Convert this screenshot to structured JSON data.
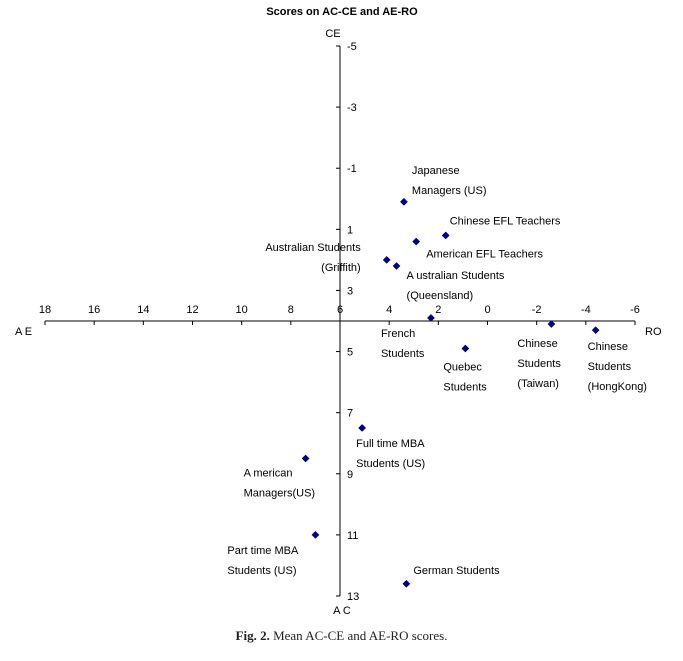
{
  "caption": {
    "label": "Fig. 2.",
    "text": "Mean AC-CE and AE-RO scores."
  },
  "chart_data": {
    "type": "scatter",
    "title": "Scores on AC-CE and AE-RO",
    "axis_labels": {
      "top": "CE",
      "bottom": "A C",
      "left": "A E",
      "right": "RO"
    },
    "x_axis": {
      "ticks": [
        18,
        16,
        14,
        12,
        10,
        8,
        6,
        4,
        2,
        0,
        -2,
        -4,
        -6
      ],
      "range": [
        18,
        -6
      ],
      "crosses_y_at": 4,
      "reversed": true
    },
    "y_axis": {
      "ticks": [
        -5,
        -3,
        -1,
        1,
        3,
        5,
        7,
        9,
        11,
        13
      ],
      "range": [
        -5,
        13
      ],
      "crosses_x_at": 6,
      "reversed": true
    },
    "grid": false,
    "marker": {
      "shape": "diamond",
      "color": "#000080"
    },
    "points": [
      {
        "label": [
          "Japanese",
          "Managers (US)"
        ],
        "x": 3.4,
        "y": 0.1
      },
      {
        "label": [
          "Chinese EFL Teachers"
        ],
        "x": 1.7,
        "y": 1.2
      },
      {
        "label": [
          "American EFL Teachers"
        ],
        "x": 2.9,
        "y": 1.4
      },
      {
        "label": [
          "Australian Students",
          "(Griffith)"
        ],
        "x": 4.1,
        "y": 2.0
      },
      {
        "label": [
          "A ustralian Students",
          "(Queensland)"
        ],
        "x": 3.7,
        "y": 2.2
      },
      {
        "label": [
          "French",
          "Students"
        ],
        "x": 2.3,
        "y": 3.9
      },
      {
        "label": [
          "Quebec",
          "Students"
        ],
        "x": 0.9,
        "y": 4.9
      },
      {
        "label": [
          "Chinese",
          "Students",
          "(Taiwan)"
        ],
        "x": -2.6,
        "y": 4.1
      },
      {
        "label": [
          "Chinese",
          "Students",
          "(HongKong)"
        ],
        "x": -4.4,
        "y": 4.3
      },
      {
        "label": [
          "Full time MBA",
          "Students (US)"
        ],
        "x": 5.1,
        "y": 7.5
      },
      {
        "label": [
          "A merican",
          "Managers(US)"
        ],
        "x": 7.4,
        "y": 8.5
      },
      {
        "label": [
          "Part time MBA",
          "Students (US)"
        ],
        "x": 7.0,
        "y": 11.0
      },
      {
        "label": [
          "German Students"
        ],
        "x": 3.3,
        "y": 12.6
      }
    ]
  }
}
